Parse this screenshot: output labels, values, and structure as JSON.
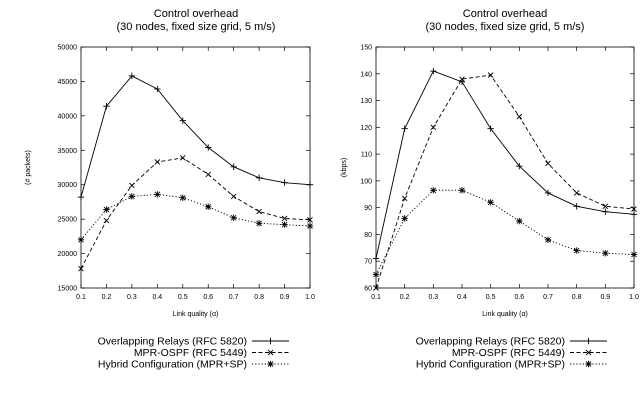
{
  "chart_data": [
    {
      "type": "line",
      "title": "Control overhead",
      "subtitle": "(30 nodes, fixed size grid, 5 m/s)",
      "xlabel": "Link quality (α)",
      "ylabel": "(# packets)",
      "x": [
        0.1,
        0.2,
        0.3,
        0.4,
        0.5,
        0.6,
        0.7,
        0.8,
        0.9,
        1.0
      ],
      "x_ticks": [
        "0.1",
        "0.2",
        "0.3",
        "0.4",
        "0.5",
        "0.6",
        "0.7",
        "0.8",
        "0.9",
        "1.0"
      ],
      "xlim": [
        0.1,
        1.0
      ],
      "ylim": [
        15000,
        50000
      ],
      "y_ticks": [
        "15000",
        "20000",
        "25000",
        "30000",
        "35000",
        "40000",
        "45000",
        "50000"
      ],
      "grid": false,
      "series": [
        {
          "name": "Overlapping Relays (RFC 5820)",
          "marker": "plus",
          "dash": "solid",
          "values": [
            28200,
            41400,
            45800,
            43900,
            39300,
            35400,
            32600,
            31000,
            30300,
            30000
          ]
        },
        {
          "name": "MPR-OSPF (RFC 5449)",
          "marker": "x",
          "dash": "dashed",
          "values": [
            17800,
            24800,
            29900,
            33300,
            33900,
            31500,
            28300,
            26100,
            25100,
            24900
          ]
        },
        {
          "name": "Hybrid Configuration (MPR+SP)",
          "marker": "star",
          "dash": "dotted",
          "values": [
            22000,
            26400,
            28300,
            28600,
            28100,
            26800,
            25200,
            24400,
            24200,
            24000
          ]
        }
      ]
    },
    {
      "type": "line",
      "title": "Control overhead",
      "subtitle": "(30 nodes, fixed size grid, 5 m/s)",
      "xlabel": "Link quality (α)",
      "ylabel": "(kbps)",
      "x": [
        0.1,
        0.2,
        0.3,
        0.4,
        0.5,
        0.6,
        0.7,
        0.8,
        0.9,
        1.0
      ],
      "x_ticks": [
        "0.1",
        "0.2",
        "0.3",
        "0.4",
        "0.5",
        "0.6",
        "0.7",
        "0.8",
        "0.9",
        "1.0"
      ],
      "xlim": [
        0.1,
        1.0
      ],
      "ylim": [
        60,
        150
      ],
      "y_ticks": [
        "60",
        "70",
        "80",
        "90",
        "100",
        "110",
        "120",
        "130",
        "140",
        "150"
      ],
      "grid": false,
      "series": [
        {
          "name": "Overlapping Relays (RFC 5820)",
          "marker": "plus",
          "dash": "solid",
          "values": [
            71,
            119.5,
            141,
            137,
            119.5,
            105.5,
            95.5,
            90.5,
            88.5,
            87.5
          ]
        },
        {
          "name": "MPR-OSPF (RFC 5449)",
          "marker": "x",
          "dash": "dashed",
          "values": [
            60,
            93.5,
            120,
            138,
            139.5,
            124,
            106.5,
            95.5,
            90.5,
            89.5
          ]
        },
        {
          "name": "Hybrid Configuration (MPR+SP)",
          "marker": "star",
          "dash": "dotted",
          "values": [
            65,
            86,
            96.5,
            96.5,
            92,
            85,
            78,
            74,
            73,
            72.5
          ]
        }
      ]
    }
  ]
}
